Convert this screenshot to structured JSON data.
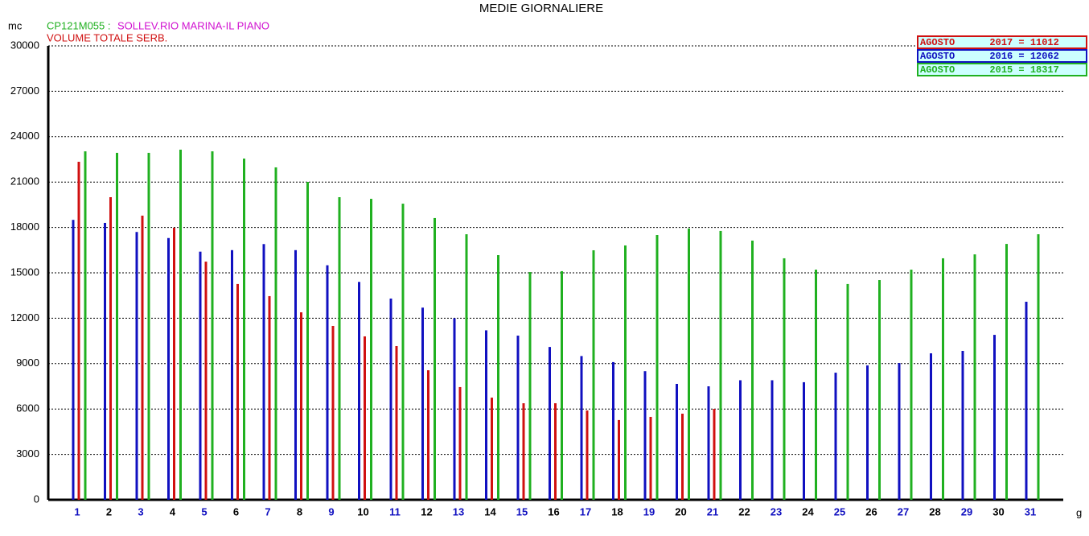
{
  "chart_data": {
    "type": "bar",
    "title": "MEDIE GIORNALIERE",
    "code": "CP121M055 :",
    "station": "SOLLEV.RIO MARINA-IL PIANO",
    "subtitle": "VOLUME TOTALE SERB.",
    "y_unit": "mc",
    "x_unit": "g",
    "categories": [
      "1",
      "2",
      "3",
      "4",
      "5",
      "6",
      "7",
      "8",
      "9",
      "10",
      "11",
      "12",
      "13",
      "14",
      "15",
      "16",
      "17",
      "18",
      "19",
      "20",
      "21",
      "22",
      "23",
      "24",
      "25",
      "26",
      "27",
      "28",
      "29",
      "30",
      "31"
    ],
    "ylim": [
      0,
      30000
    ],
    "yticks": [
      0,
      3000,
      6000,
      9000,
      12000,
      15000,
      18000,
      21000,
      24000,
      27000,
      30000
    ],
    "grid": true,
    "legend": "upper right",
    "series": [
      {
        "name": "AGOSTO      2017 = 11012",
        "color": "#d01010",
        "values": [
          22340,
          20000,
          18780,
          17980,
          15740,
          14260,
          13460,
          12390,
          11490,
          10800,
          10160,
          8560,
          7450,
          6750,
          6380,
          6380,
          5900,
          5270,
          5480,
          5690,
          6010,
          null,
          null,
          null,
          null,
          null,
          null,
          null,
          null,
          null,
          null
        ]
      },
      {
        "name": "AGOSTO      2016 = 12062",
        "color": "#1010c0",
        "values": [
          18500,
          18300,
          17700,
          17300,
          16400,
          16500,
          16900,
          16500,
          15500,
          14400,
          13300,
          12700,
          12000,
          11200,
          10850,
          10100,
          9500,
          9100,
          8500,
          7660,
          7500,
          7900,
          7900,
          7770,
          8400,
          8880,
          9040,
          9680,
          9840,
          10900,
          13090
        ]
      },
      {
        "name": "AGOSTO      2015 = 18317",
        "color": "#20b020",
        "values": [
          23030,
          22930,
          22930,
          23140,
          23030,
          22550,
          21970,
          21010,
          20000,
          19890,
          19570,
          18620,
          17550,
          16170,
          15050,
          15110,
          16490,
          16810,
          17500,
          17930,
          17770,
          17130,
          15960,
          15210,
          14260,
          14520,
          15210,
          15960,
          16220,
          16910,
          17550
        ]
      }
    ]
  }
}
